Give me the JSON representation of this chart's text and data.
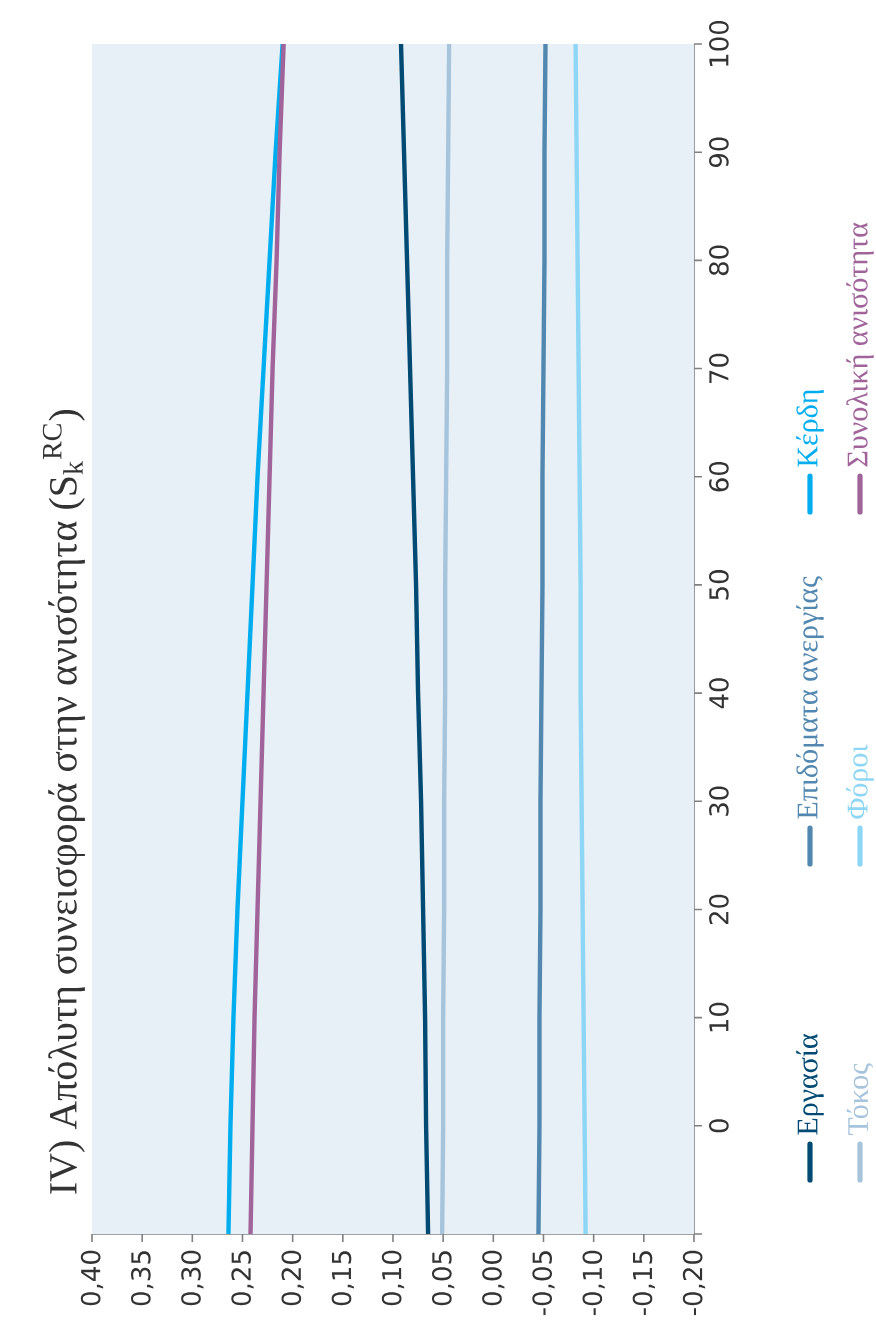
{
  "chart_data": {
    "type": "line",
    "title": "IV) Απόλυτη συνεισφορά στην ανισότητα (S$_{k}$$^{RC}$)",
    "xlim": [
      0.4,
      -0.2
    ],
    "xticks": [
      {
        "value": 0.4,
        "label": "0,40"
      },
      {
        "value": 0.35,
        "label": "0,35"
      },
      {
        "value": 0.3,
        "label": "0,30"
      },
      {
        "value": 0.25,
        "label": "0,25"
      },
      {
        "value": 0.2,
        "label": "0,20"
      },
      {
        "value": 0.15,
        "label": "0,15"
      },
      {
        "value": 0.1,
        "label": "0,10"
      },
      {
        "value": 0.05,
        "label": "0,05"
      },
      {
        "value": 0,
        "label": "0,00"
      },
      {
        "value": -0.05,
        "label": "-0,05"
      },
      {
        "value": -0.1,
        "label": "-0,10"
      },
      {
        "value": -0.15,
        "label": "-0,15"
      },
      {
        "value": -0.2,
        "label": "-0,20"
      }
    ],
    "ylim": [
      -10,
      100
    ],
    "yticks": [
      {
        "value": -10,
        "label": null
      },
      0,
      10,
      20,
      30,
      40,
      50,
      60,
      70,
      80,
      90,
      100
    ],
    "legend": "right",
    "line_style": "solid",
    "grid": false,
    "series": [
      {
        "name": "Εργασία",
        "color": "#004a73",
        "x": [
          0.065,
          0.067,
          0.068,
          0.07,
          0.072,
          0.075,
          0.077,
          0.08,
          0.083,
          0.086,
          0.089,
          0.092
        ],
        "values": [
          -10,
          0,
          10,
          20,
          30,
          40,
          50,
          60,
          70,
          80,
          90,
          100
        ]
      },
      {
        "name": "Επιδόματα ανεργίας",
        "color": "#5288b0",
        "x": [
          -0.045,
          -0.046,
          -0.046,
          -0.047,
          -0.047,
          -0.048,
          -0.049,
          -0.049,
          -0.05,
          -0.051,
          -0.051,
          -0.052
        ],
        "values": [
          -10,
          0,
          10,
          20,
          30,
          40,
          50,
          60,
          70,
          80,
          90,
          100
        ]
      },
      {
        "name": "Κέρδη",
        "color": "#00aeef",
        "x": [
          0.264,
          0.262,
          0.259,
          0.255,
          0.25,
          0.245,
          0.24,
          0.235,
          0.229,
          0.223,
          0.217,
          0.21
        ],
        "values": [
          -10,
          0,
          10,
          20,
          30,
          40,
          50,
          60,
          70,
          80,
          90,
          100
        ]
      },
      {
        "name": "Τόκος",
        "color": "#a6c4dc",
        "x": [
          0.051,
          0.05,
          0.05,
          0.049,
          0.049,
          0.048,
          0.048,
          0.047,
          0.046,
          0.046,
          0.045,
          0.044
        ],
        "values": [
          -10,
          0,
          10,
          20,
          30,
          40,
          50,
          60,
          70,
          80,
          90,
          100
        ]
      },
      {
        "name": "Φόροι",
        "color": "#8ed6f5",
        "x": [
          -0.092,
          -0.091,
          -0.09,
          -0.089,
          -0.088,
          -0.087,
          -0.087,
          -0.086,
          -0.085,
          -0.084,
          -0.083,
          -0.082
        ],
        "values": [
          -10,
          0,
          10,
          20,
          30,
          40,
          50,
          60,
          70,
          80,
          90,
          100
        ]
      },
      {
        "name": "Συνολική ανισότητα",
        "color": "#a0649a",
        "x": [
          0.242,
          0.24,
          0.238,
          0.235,
          0.232,
          0.229,
          0.226,
          0.223,
          0.22,
          0.216,
          0.213,
          0.209
        ],
        "values": [
          -10,
          0,
          10,
          20,
          30,
          40,
          50,
          60,
          70,
          80,
          90,
          100
        ]
      }
    ]
  }
}
